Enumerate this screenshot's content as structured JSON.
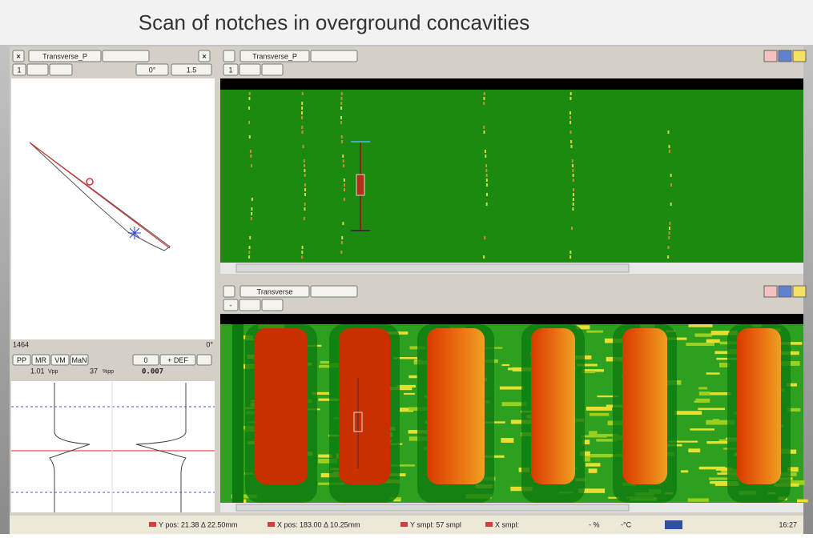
{
  "title": "Scan of notches in overground concavities",
  "left_panel": {
    "tab": "Transverse_P",
    "channel": "1",
    "angle": "0°",
    "gain": "1.5",
    "depth": "1464",
    "depth_angle": "0°",
    "buttons": [
      "PP",
      "MR",
      "VM",
      "MaN"
    ],
    "tools": [
      "0",
      "+ DEF"
    ],
    "readouts": [
      {
        "value": "1.01",
        "unit": "Vpp"
      },
      {
        "value": "37",
        "unit": "%pp"
      },
      {
        "value": "0.007"
      }
    ]
  },
  "top_panel": {
    "tab": "Transverse_P",
    "channel": "1"
  },
  "bottom_panel": {
    "tab": "Transverse",
    "channel": "-"
  },
  "status_bar": {
    "items": [
      "Y pos: 21.38 Δ 22.50mm",
      "X pos: 183.00 Δ 10.25mm",
      "Y smpl: 57 smpl",
      "X smpl:",
      "- %",
      "-°C"
    ],
    "time": "16:27"
  }
}
